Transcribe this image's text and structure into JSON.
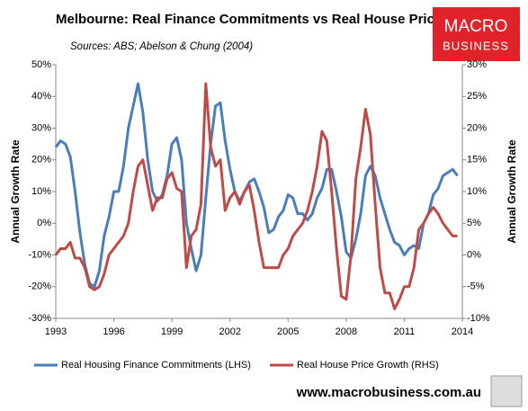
{
  "chart_data": {
    "type": "line",
    "title": "Melbourne: Real Finance Commitments vs Real House Prices",
    "subtitle": "Sources: ABS; Abelson & Chung (2004)",
    "logo": {
      "line1": "MACRO",
      "line2": "BUSINESS"
    },
    "footer": "www.macrobusiness.com.au",
    "ylabel": "Annual Growth Rate",
    "y2label": "Annual Growth Rate",
    "x": [
      1993,
      1993.25,
      1993.5,
      1993.75,
      1994,
      1994.25,
      1994.5,
      1994.75,
      1995,
      1995.25,
      1995.5,
      1995.75,
      1996,
      1996.25,
      1996.5,
      1996.75,
      1997,
      1997.25,
      1997.5,
      1997.75,
      1998,
      1998.25,
      1998.5,
      1998.75,
      1999,
      1999.25,
      1999.5,
      1999.75,
      2000,
      2000.25,
      2000.5,
      2000.75,
      2001,
      2001.25,
      2001.5,
      2001.75,
      2002,
      2002.25,
      2002.5,
      2002.75,
      2003,
      2003.25,
      2003.5,
      2003.75,
      2004,
      2004.25,
      2004.5,
      2004.75,
      2005,
      2005.25,
      2005.5,
      2005.75,
      2006,
      2006.25,
      2006.5,
      2006.75,
      2007,
      2007.25,
      2007.5,
      2007.75,
      2008,
      2008.25,
      2008.5,
      2008.75,
      2009,
      2009.25,
      2009.5,
      2009.75,
      2010,
      2010.25,
      2010.5,
      2010.75,
      2011,
      2011.25,
      2011.5,
      2011.75,
      2012,
      2012.25,
      2012.5,
      2012.75,
      2013,
      2013.25,
      2013.5,
      2013.75
    ],
    "series": [
      {
        "name": "Real Housing Finance Commitments (LHS)",
        "color": "#4a7ebb",
        "axis": "y",
        "values": [
          24,
          26,
          25,
          21,
          10,
          -3,
          -13,
          -19,
          -20,
          -15,
          -4,
          2,
          10,
          10,
          18,
          30,
          37,
          44,
          35,
          20,
          10,
          7,
          9,
          15,
          25,
          27,
          20,
          0,
          -8,
          -15,
          -10,
          8,
          25,
          37,
          38,
          26,
          17,
          10,
          7,
          10,
          13,
          14,
          10,
          5,
          -3,
          -2,
          2,
          4,
          9,
          8,
          3,
          3,
          1,
          3,
          8,
          11,
          17,
          17,
          10,
          2,
          -9,
          -11,
          -5,
          3,
          15,
          18,
          15,
          8,
          3,
          -2,
          -6,
          -7,
          -10,
          -8,
          -7,
          -8,
          0,
          3,
          9,
          11,
          15,
          16,
          17,
          15
        ]
      },
      {
        "name": "Real House Price Growth (RHS)",
        "color": "#be4b48",
        "axis": "y2",
        "values": [
          0,
          1,
          1,
          2,
          -0.5,
          -0.5,
          -2,
          -5,
          -5.5,
          -5,
          -3,
          0,
          1,
          2,
          3,
          5,
          10,
          14,
          15,
          11,
          7,
          9,
          9,
          12,
          13,
          10.5,
          10,
          -2,
          3,
          4,
          8,
          27,
          17,
          14,
          15,
          7,
          9,
          10,
          8,
          10,
          11,
          7,
          2,
          -2,
          -2,
          -2,
          -2,
          0,
          1,
          3,
          4,
          5,
          7,
          10,
          14,
          19.5,
          18,
          10,
          1,
          -6.5,
          -7,
          0,
          12,
          17,
          23,
          19,
          8,
          -2,
          -6,
          -6,
          -8.5,
          -7,
          -5,
          -5,
          -2,
          4,
          5,
          6.5,
          7.5,
          6.5,
          5,
          4,
          3,
          3
        ]
      }
    ],
    "xlim": [
      1993,
      2014
    ],
    "xticks": [
      1993,
      1996,
      1999,
      2002,
      2005,
      2008,
      2011,
      2014
    ],
    "ylim": [
      -30,
      50
    ],
    "yticks": [
      {
        "value": -30,
        "label": "-30%"
      },
      {
        "value": -20,
        "label": "-20%"
      },
      {
        "value": -10,
        "label": "-10%"
      },
      {
        "value": 0,
        "label": "0%"
      },
      {
        "value": 10,
        "label": "10%"
      },
      {
        "value": 20,
        "label": "20%"
      },
      {
        "value": 30,
        "label": "30%"
      },
      {
        "value": 40,
        "label": "40%"
      },
      {
        "value": 50,
        "label": "50%"
      }
    ],
    "y2lim": [
      -10,
      30
    ],
    "y2ticks": [
      {
        "value": -10,
        "label": "-10%"
      },
      {
        "value": -5,
        "label": "-5%"
      },
      {
        "value": 0,
        "label": "0%"
      },
      {
        "value": 5,
        "label": "5%"
      },
      {
        "value": 10,
        "label": "10%"
      },
      {
        "value": 15,
        "label": "15%"
      },
      {
        "value": 20,
        "label": "20%"
      },
      {
        "value": 25,
        "label": "25%"
      },
      {
        "value": 30,
        "label": "30%"
      }
    ],
    "grid": false,
    "legend": "bottom"
  }
}
